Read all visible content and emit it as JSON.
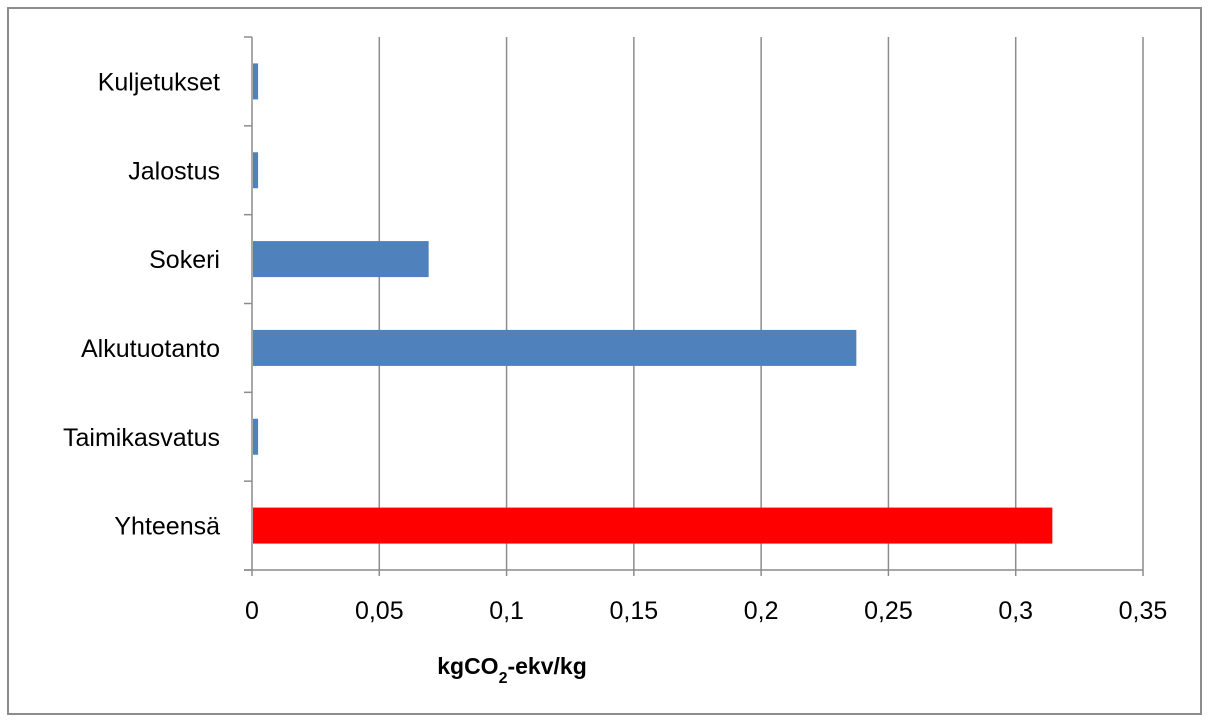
{
  "chart_data": {
    "type": "bar",
    "orientation": "horizontal",
    "categories": [
      "Kuljetukset",
      "Jalostus",
      "Sokeri",
      "Alkutuotanto",
      "Taimikasvatus",
      "Yhteensä"
    ],
    "values": [
      0.002,
      0.002,
      0.069,
      0.237,
      0.002,
      0.314
    ],
    "bar_colors": [
      "#4f81bd",
      "#4f81bd",
      "#4f81bd",
      "#4f81bd",
      "#4f81bd",
      "#ff0000"
    ],
    "xlim": [
      0,
      0.35
    ],
    "xticks": [
      0,
      0.05,
      0.1,
      0.15,
      0.2,
      0.25,
      0.3,
      0.35
    ],
    "xtick_labels": [
      "0",
      "0,05",
      "0,1",
      "0,15",
      "0,2",
      "0,25",
      "0,3",
      "0,35"
    ],
    "xlabel": {
      "main": "kgCO",
      "sub": "2",
      "rest": "-ekv/kg"
    },
    "title": "",
    "ylabel": "",
    "grid": "vertical",
    "legend": "none",
    "gridline_color": "#8c8c8c"
  }
}
